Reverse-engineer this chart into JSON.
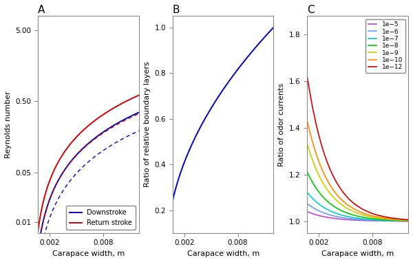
{
  "x_min": 0.0007,
  "x_max": 0.012,
  "panel_A": {
    "title": "A",
    "ylabel": "Reynolds number",
    "xlabel": "Carapace width, m",
    "downstroke_color": "#0000bb",
    "returnstroke_color": "#cc0000",
    "legend_labels": [
      "Downstroke",
      "Return stroke"
    ],
    "Re_down_coef": 380.0,
    "Re_down_exp": 1.58,
    "Re_ret_coef": 580.0,
    "Re_ret_exp": 1.55,
    "dashed_factor_down": 0.55,
    "dashed_factor_ret": 0.55,
    "yticks": [
      0.01,
      0.05,
      0.5,
      5.0
    ],
    "ytick_labels": [
      "0.01",
      "0.05",
      "0.50",
      "5.00"
    ],
    "xticks": [
      0.002,
      0.008
    ],
    "ylim_low": 0.007,
    "ylim_high": 8.0
  },
  "panel_B": {
    "title": "B",
    "ylabel": "Ratio of relative boundary layers",
    "xlabel": "Carapace width, m",
    "line_color": "#0000bb",
    "coef": 1.0,
    "exp": 0.5,
    "yticks": [
      0.2,
      0.4,
      0.6,
      0.8,
      1.0
    ],
    "xticks": [
      0.002,
      0.008
    ],
    "ylim_low": 0.1,
    "ylim_high": 1.05
  },
  "panel_C": {
    "title": "C",
    "ylabel": "Ratio of odor currents",
    "xlabel": "Carapace width, m",
    "ylim_low": 0.95,
    "ylim_high": 1.88,
    "yticks": [
      1.0,
      1.2,
      1.4,
      1.6,
      1.8
    ],
    "xticks": [
      0.002,
      0.008
    ],
    "diffusivities": [
      1e-05,
      1e-06,
      1e-07,
      1e-08,
      1e-09,
      1e-10,
      1e-12
    ],
    "colors": [
      "#cc44cc",
      "#6699ff",
      "#00cccc",
      "#00cc00",
      "#cccc00",
      "#ff8800",
      "#cc0000"
    ],
    "labels": [
      "1e−5",
      "1e−6",
      "1e−7",
      "1e−8",
      "1e−9",
      "1e−10",
      "1e−12"
    ],
    "amplitudes": [
      0.055,
      0.1,
      0.165,
      0.28,
      0.44,
      0.57,
      0.82
    ],
    "decay_scale": 0.0025
  }
}
